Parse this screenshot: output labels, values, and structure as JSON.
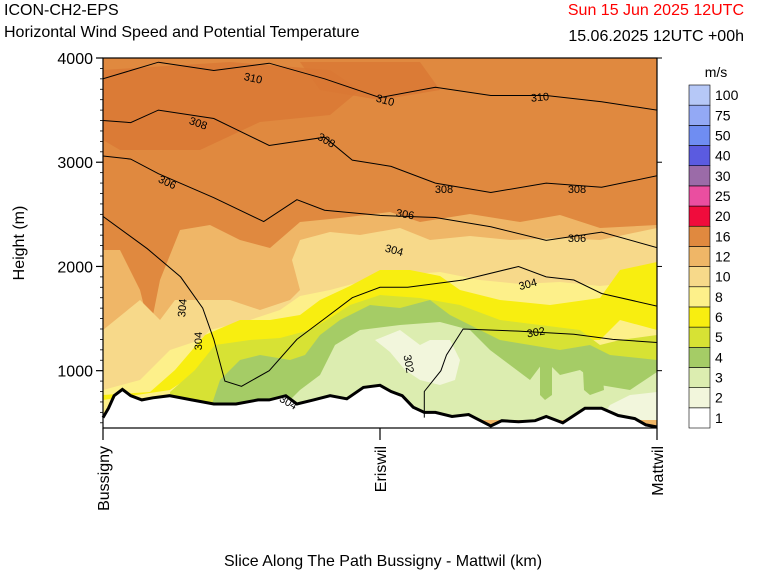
{
  "header": {
    "model": "ICON-CH2-EPS",
    "subtitle": "Horizontal Wind Speed and Potential Temperature",
    "datetime": "Sun 15 Jun 2025 12UTC",
    "validity": "15.06.2025 12UTC +00h"
  },
  "chart_data": {
    "type": "heatmap",
    "title": "Horizontal Wind Speed and Potential Temperature",
    "xlabel": "Slice Along The Path Bussigny - Mattwil (km)",
    "ylabel": "Height (m)",
    "ylim": [
      450,
      4000
    ],
    "y_ticks": [
      1000,
      2000,
      3000,
      4000
    ],
    "x_ticks": [
      "Bussigny",
      "Eriswil",
      "Mattwil"
    ],
    "colorbar": {
      "unit": "m/s",
      "levels": [
        1,
        2,
        3,
        4,
        5,
        6,
        8,
        10,
        12,
        16,
        20,
        25,
        30,
        40,
        50,
        75,
        100
      ],
      "colors": [
        "#ffffff",
        "#f2f6dc",
        "#dcedb0",
        "#a5cc66",
        "#d7e234",
        "#f8ee10",
        "#fdf08a",
        "#f7d98a",
        "#efb667",
        "#e0893f",
        "#f00c3c",
        "#ea4ea0",
        "#9b6ba8",
        "#5b5be0",
        "#6f8df2",
        "#93a9f5",
        "#b6c8f7"
      ]
    },
    "isentrope_labels": [
      "310",
      "310",
      "310",
      "308",
      "308",
      "308",
      "308",
      "306",
      "306",
      "306",
      "304",
      "304",
      "304",
      "304",
      "304",
      "302",
      "302"
    ],
    "isentropes": [
      {
        "theta": 310,
        "points": [
          [
            0,
            3800
          ],
          [
            0.05,
            3880
          ],
          [
            0.1,
            3960
          ],
          [
            0.2,
            3880
          ],
          [
            0.3,
            3950
          ],
          [
            0.4,
            3800
          ],
          [
            0.5,
            3620
          ],
          [
            0.6,
            3720
          ],
          [
            0.7,
            3640
          ],
          [
            0.8,
            3640
          ],
          [
            0.9,
            3580
          ],
          [
            1,
            3500
          ]
        ]
      },
      {
        "theta": 308,
        "points": [
          [
            0,
            3400
          ],
          [
            0.05,
            3380
          ],
          [
            0.1,
            3500
          ],
          [
            0.2,
            3420
          ],
          [
            0.3,
            3160
          ],
          [
            0.4,
            3240
          ],
          [
            0.45,
            3020
          ],
          [
            0.52,
            2960
          ],
          [
            0.6,
            2800
          ],
          [
            0.7,
            2710
          ],
          [
            0.8,
            2800
          ],
          [
            0.9,
            2760
          ],
          [
            1,
            2870
          ]
        ]
      },
      {
        "theta": 306,
        "points": [
          [
            0,
            3060
          ],
          [
            0.05,
            3030
          ],
          [
            0.1,
            2890
          ],
          [
            0.2,
            2660
          ],
          [
            0.29,
            2430
          ],
          [
            0.35,
            2640
          ],
          [
            0.4,
            2540
          ],
          [
            0.5,
            2490
          ],
          [
            0.6,
            2470
          ],
          [
            0.7,
            2380
          ],
          [
            0.8,
            2250
          ],
          [
            0.9,
            2330
          ],
          [
            1,
            2180
          ]
        ]
      },
      {
        "theta": 304,
        "points": [
          [
            0,
            2480
          ],
          [
            0.08,
            2170
          ],
          [
            0.14,
            1900
          ],
          [
            0.18,
            1600
          ],
          [
            0.2,
            1300
          ],
          [
            0.22,
            900
          ],
          [
            0.25,
            850
          ],
          [
            0.3,
            1000
          ],
          [
            0.35,
            1300
          ],
          [
            0.4,
            1500
          ],
          [
            0.45,
            1700
          ],
          [
            0.5,
            1800
          ],
          [
            0.55,
            1800
          ],
          [
            0.65,
            1870
          ],
          [
            0.75,
            2000
          ],
          [
            0.8,
            1900
          ],
          [
            0.85,
            1870
          ],
          [
            0.9,
            1740
          ],
          [
            1,
            1620
          ]
        ]
      },
      {
        "theta": 302,
        "points": [
          [
            0.58,
            550
          ],
          [
            0.58,
            800
          ],
          [
            0.61,
            1000
          ],
          [
            0.62,
            1150
          ],
          [
            0.65,
            1400
          ],
          [
            0.75,
            1380
          ],
          [
            0.85,
            1350
          ],
          [
            0.92,
            1300
          ],
          [
            1,
            1270
          ]
        ]
      }
    ],
    "terrain_heights": [
      [
        0,
        550
      ],
      [
        0.01,
        640
      ],
      [
        0.02,
        760
      ],
      [
        0.035,
        820
      ],
      [
        0.05,
        760
      ],
      [
        0.07,
        720
      ],
      [
        0.09,
        740
      ],
      [
        0.12,
        760
      ],
      [
        0.16,
        720
      ],
      [
        0.2,
        680
      ],
      [
        0.24,
        680
      ],
      [
        0.28,
        720
      ],
      [
        0.3,
        720
      ],
      [
        0.33,
        760
      ],
      [
        0.35,
        680
      ],
      [
        0.38,
        720
      ],
      [
        0.41,
        760
      ],
      [
        0.44,
        730
      ],
      [
        0.47,
        840
      ],
      [
        0.5,
        860
      ],
      [
        0.52,
        800
      ],
      [
        0.54,
        760
      ],
      [
        0.56,
        650
      ],
      [
        0.58,
        600
      ],
      [
        0.6,
        600
      ],
      [
        0.63,
        560
      ],
      [
        0.66,
        580
      ],
      [
        0.7,
        470
      ],
      [
        0.72,
        520
      ],
      [
        0.75,
        510
      ],
      [
        0.78,
        520
      ],
      [
        0.8,
        560
      ],
      [
        0.83,
        500
      ],
      [
        0.87,
        640
      ],
      [
        0.9,
        640
      ],
      [
        0.93,
        570
      ],
      [
        0.96,
        540
      ],
      [
        0.98,
        480
      ],
      [
        1,
        460
      ]
    ]
  }
}
